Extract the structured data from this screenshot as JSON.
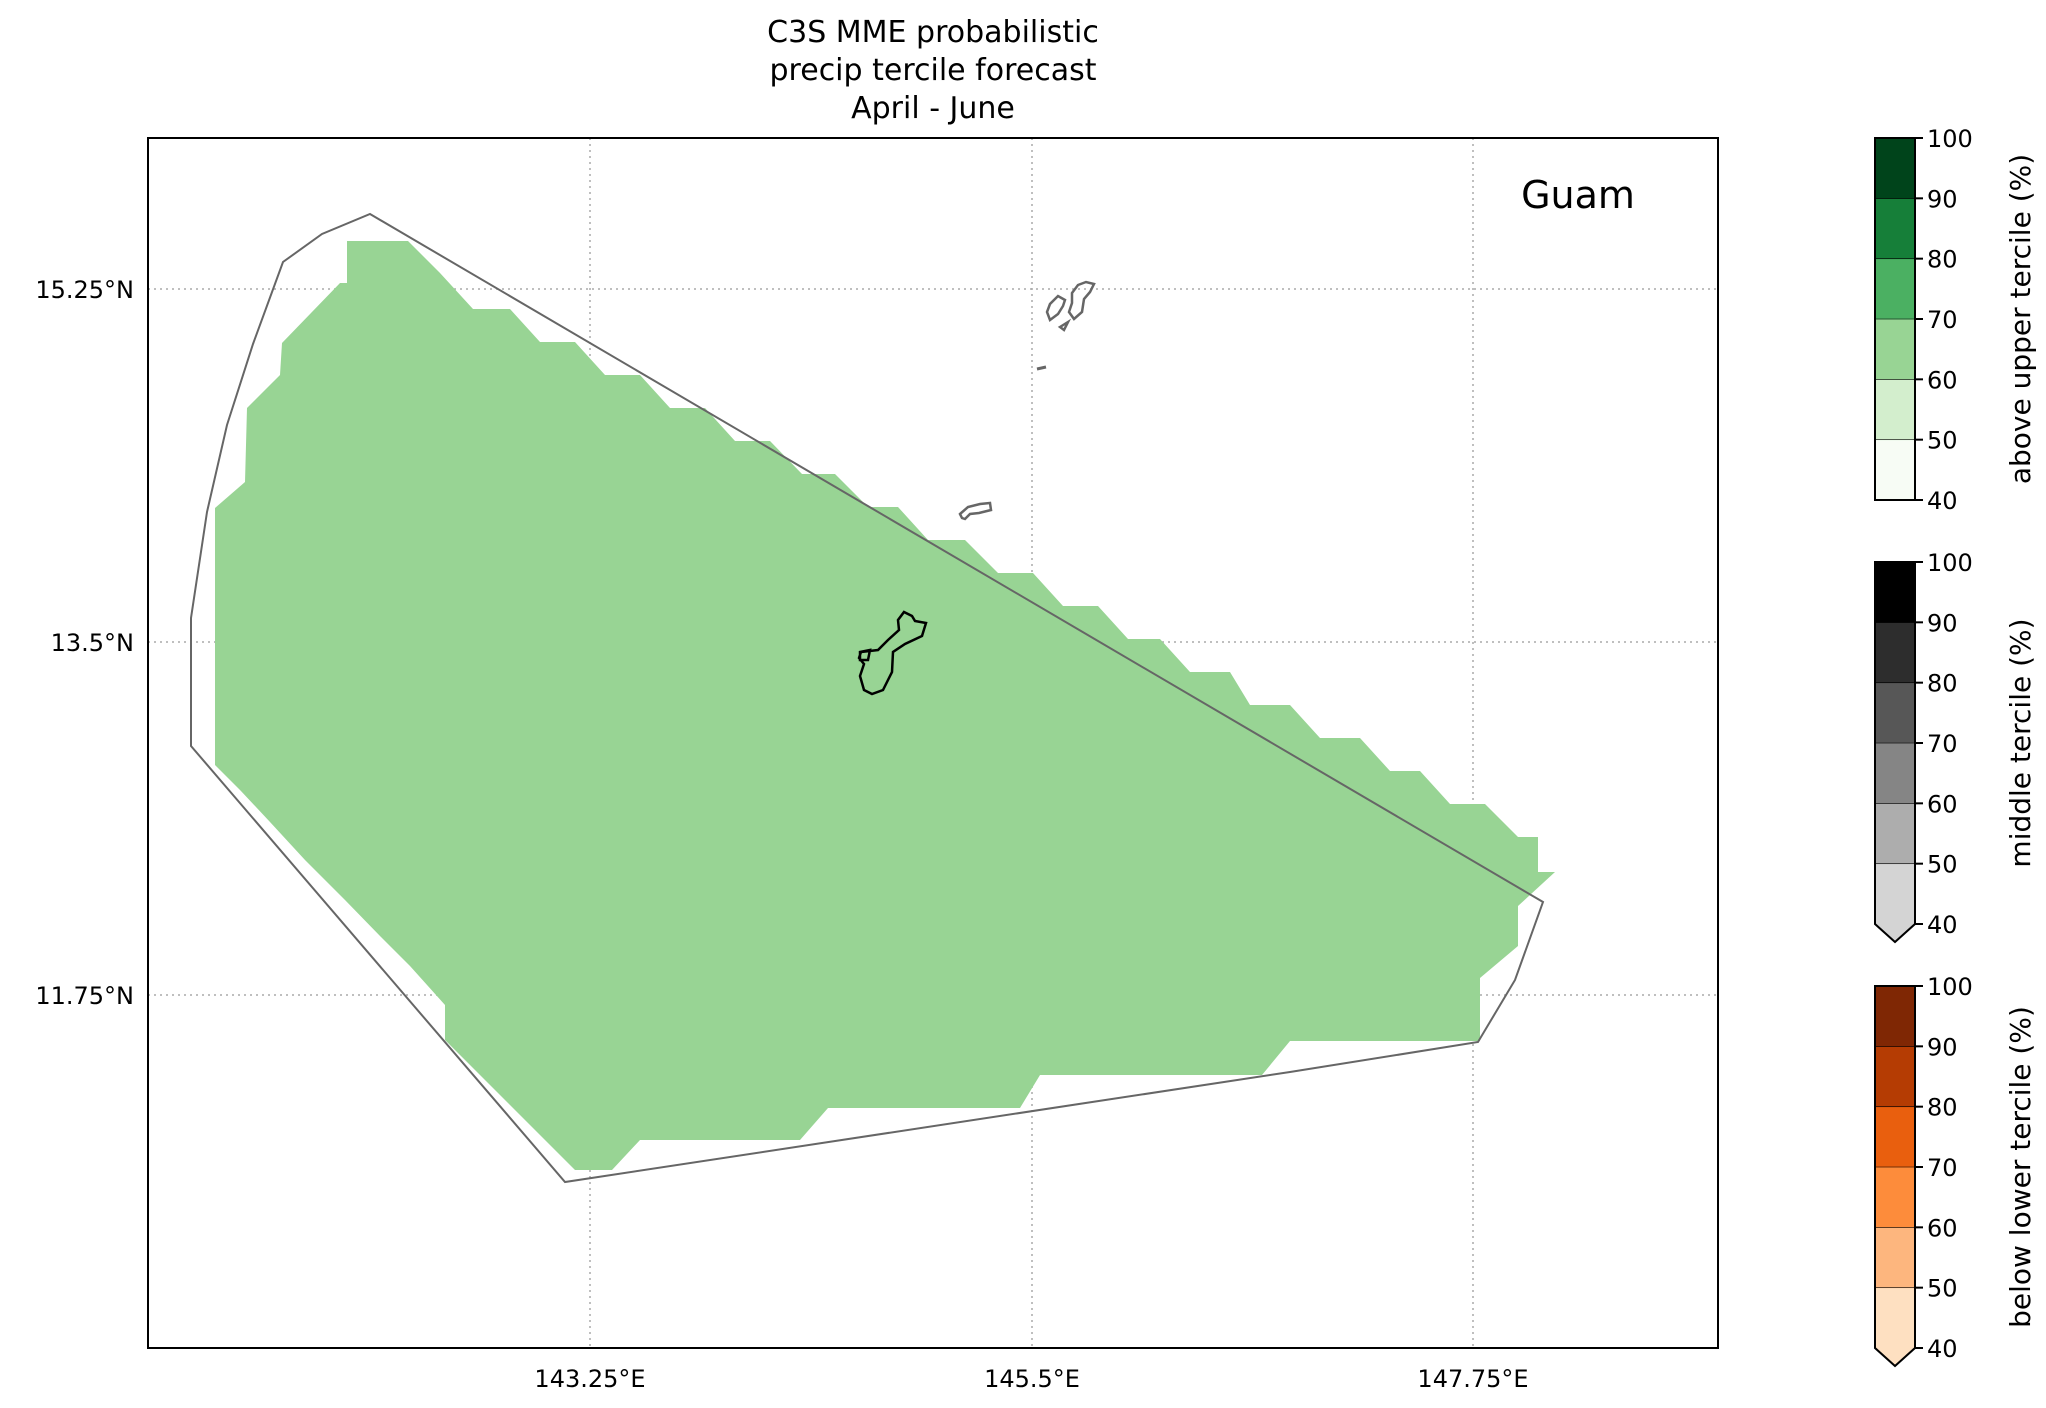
{
  "title": {
    "line1": "C3S MME probabilistic",
    "line2": "precip tercile forecast",
    "line3": "April - June"
  },
  "map": {
    "region_label": "Guam",
    "lat_ticks": [
      "15.25°N",
      "13.5°N",
      "11.75°N"
    ],
    "lon_ticks": [
      "143.25°E",
      "145.5°E",
      "147.75°E"
    ],
    "lat_values": [
      15.25,
      13.5,
      11.75
    ],
    "lon_values": [
      143.25,
      145.5,
      147.75
    ],
    "fill_color": "#98d494",
    "fill_category": "above upper tercile 60-70%"
  },
  "colorbars": [
    {
      "label": "above upper tercile (%)",
      "ticks": [
        "100",
        "90",
        "80",
        "70",
        "60",
        "50",
        "40"
      ],
      "colors": [
        "#f7fcf5",
        "#d3eecd",
        "#98d494",
        "#4bb062",
        "#167f39",
        "#00441b"
      ],
      "extend": "none"
    },
    {
      "label": "middle tercile (%)",
      "ticks": [
        "100",
        "90",
        "80",
        "70",
        "60",
        "50",
        "40"
      ],
      "colors": [
        "#d4d4d4",
        "#adadad",
        "#858585",
        "#575757",
        "#2d2d2d",
        "#000000"
      ],
      "extend": "min"
    },
    {
      "label": "below lower tercile (%)",
      "ticks": [
        "100",
        "90",
        "80",
        "70",
        "60",
        "50",
        "40"
      ],
      "colors": [
        "#fee0c1",
        "#fdb67e",
        "#fd8c3b",
        "#e95f0e",
        "#b53c03",
        "#7f2704"
      ],
      "extend": "min"
    }
  ]
}
